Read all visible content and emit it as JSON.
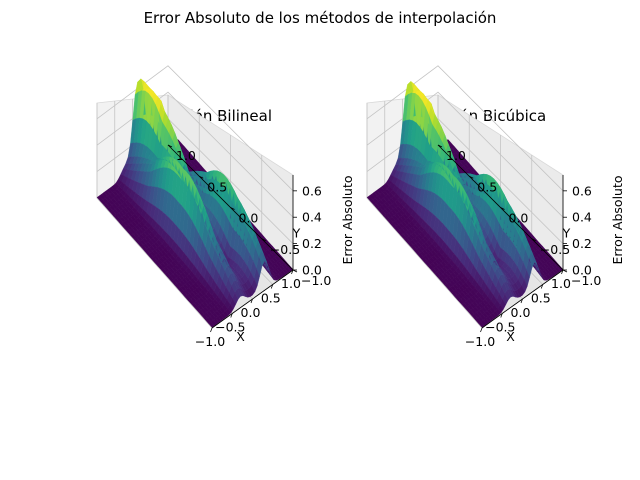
{
  "title": "Error Absoluto de los métodos de interpolación",
  "chart_data": [
    {
      "type": "surface3d",
      "title": "Interpolación Bilineal",
      "xlabel": "X",
      "ylabel": "Y",
      "zlabel": "",
      "xlim": [
        -1.0,
        1.0
      ],
      "ylim": [
        -1.0,
        1.0
      ],
      "zlim": [
        0.0,
        0.72
      ],
      "xticks": [
        "−1.0",
        "−0.5",
        "0.0",
        "0.5",
        "1.0"
      ],
      "yticks": [
        "−1.0",
        "−0.5",
        "0.0",
        "0.5",
        "1.0"
      ],
      "zticks": [
        "0.0",
        "0.2",
        "0.4",
        "0.6"
      ],
      "colormap": "viridis",
      "grid": true,
      "max_error": 0.72,
      "peaks": [
        {
          "x": 0.0,
          "y": 0.75,
          "z": 0.72
        },
        {
          "x": -0.3,
          "y": 0.0,
          "z": 0.55
        },
        {
          "x": 0.3,
          "y": -0.35,
          "z": 0.5
        }
      ]
    },
    {
      "type": "surface3d",
      "title": "Interpolación Bicúbica",
      "xlabel": "X",
      "ylabel": "Y",
      "zlabel": "Error Absoluto",
      "xlim": [
        -1.0,
        1.0
      ],
      "ylim": [
        -1.0,
        1.0
      ],
      "zlim": [
        0.0,
        0.72
      ],
      "xticks": [
        "−1.0",
        "−0.5",
        "0.0",
        "0.5",
        "1.0"
      ],
      "yticks": [
        "−1.0",
        "−0.5",
        "0.0",
        "0.5",
        "1.0"
      ],
      "zticks": [
        "0.0",
        "0.2",
        "0.4",
        "0.6"
      ],
      "colormap": "viridis",
      "grid": true,
      "max_error": 0.7,
      "peaks": [
        {
          "x": 0.0,
          "y": 0.75,
          "z": 0.7
        },
        {
          "x": -0.3,
          "y": 0.0,
          "z": 0.5
        },
        {
          "x": 0.3,
          "y": -0.35,
          "z": 0.47
        }
      ]
    }
  ],
  "extra_labels": [
    {
      "text": "Error Absoluto"
    }
  ]
}
